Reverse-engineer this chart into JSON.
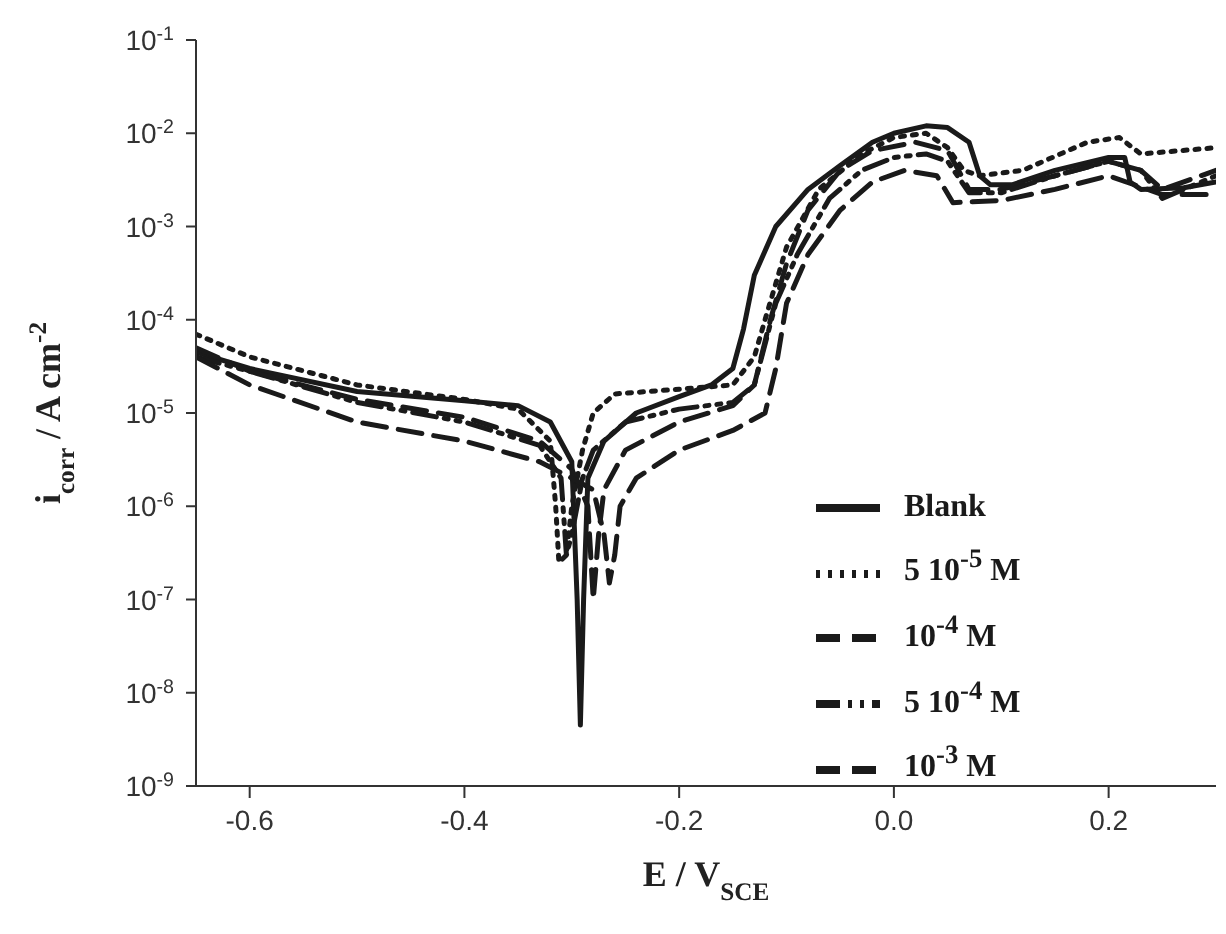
{
  "chart_data": {
    "type": "line",
    "xlabel": "E / V$_{SCE}$",
    "ylabel": "i$_{corr}$ / A cm$^{-2}$",
    "log": "y",
    "grid": false,
    "legend": "bottom right",
    "marker": "none",
    "xlim": [
      -0.65,
      0.3
    ],
    "xticks": [
      -0.6,
      -0.4,
      -0.2,
      {
        "value": 0,
        "label": "0.0"
      },
      0.2
    ],
    "ylim": [
      1e-09,
      0.1
    ],
    "yticks": [
      {
        "value": 1e-09,
        "label": "10$^{-9}$"
      },
      {
        "value": 1e-08,
        "label": "10$^{-8}$"
      },
      {
        "value": 1e-07,
        "label": "10$^{-7}$"
      },
      {
        "value": 1e-06,
        "label": "10$^{-6}$"
      },
      {
        "value": 1e-05,
        "label": "10$^{-5}$"
      },
      {
        "value": 0.0001,
        "label": "10$^{-4}$"
      },
      {
        "value": 0.001,
        "label": "10$^{-3}$"
      },
      {
        "value": 0.01,
        "label": "10$^{-2}$"
      },
      {
        "value": 0.1,
        "label": "10$^{-1}$"
      }
    ],
    "series": [
      {
        "name": "Blank",
        "color": "#1a1a1a",
        "line_style": "solid",
        "x": [
          -0.65,
          -0.6,
          -0.5,
          -0.4,
          -0.35,
          -0.32,
          -0.3,
          -0.295,
          -0.292,
          -0.289,
          -0.285,
          -0.27,
          -0.24,
          -0.2,
          -0.17,
          -0.15,
          -0.14,
          -0.13,
          -0.11,
          -0.08,
          -0.05,
          -0.02,
          0.0,
          0.03,
          0.05,
          0.07,
          0.08,
          0.09,
          0.11,
          0.15,
          0.2,
          0.215,
          0.22,
          0.23,
          0.27,
          0.3
        ],
        "values": [
          4.5e-05,
          3e-05,
          1.7e-05,
          1.35e-05,
          1.2e-05,
          8e-06,
          3e-06,
          1e-07,
          4.5e-09,
          1e-07,
          2e-06,
          5e-06,
          1e-05,
          1.5e-05,
          2e-05,
          3e-05,
          8e-05,
          0.0003,
          0.001,
          0.0025,
          0.0045,
          0.008,
          0.01,
          0.012,
          0.0115,
          0.008,
          0.0035,
          0.0028,
          0.0028,
          0.004,
          0.0055,
          0.0055,
          0.003,
          0.0025,
          0.0026,
          0.003
        ]
      },
      {
        "name": "5  10$^{-5}$ M",
        "color": "#1a1a1a",
        "line_style": "dotted",
        "x": [
          -0.65,
          -0.6,
          -0.5,
          -0.4,
          -0.35,
          -0.32,
          -0.315,
          -0.312,
          -0.305,
          -0.3,
          -0.29,
          -0.28,
          -0.26,
          -0.2,
          -0.15,
          -0.13,
          -0.12,
          -0.1,
          -0.07,
          -0.03,
          0.0,
          0.03,
          0.05,
          0.065,
          0.08,
          0.12,
          0.18,
          0.21,
          0.23,
          0.3
        ],
        "values": [
          7e-05,
          4e-05,
          2e-05,
          1.4e-05,
          1.1e-05,
          5e-06,
          1e-06,
          2.5e-07,
          3e-07,
          1e-06,
          4e-06,
          1e-05,
          1.6e-05,
          1.8e-05,
          2e-05,
          4e-05,
          0.0001,
          0.0006,
          0.0025,
          0.006,
          0.009,
          0.01,
          0.007,
          0.004,
          0.0035,
          0.004,
          0.008,
          0.009,
          0.006,
          0.007
        ]
      },
      {
        "name": "10$^{-4}$ M",
        "color": "#1a1a1a",
        "line_style": "dashed",
        "x": [
          -0.65,
          -0.6,
          -0.5,
          -0.4,
          -0.33,
          -0.3,
          -0.285,
          -0.28,
          -0.275,
          -0.27,
          -0.25,
          -0.2,
          -0.15,
          -0.13,
          -0.115,
          -0.1,
          -0.08,
          -0.05,
          -0.02,
          0.02,
          0.05,
          0.07,
          0.1,
          0.15,
          0.2,
          0.23,
          0.25,
          0.3
        ],
        "values": [
          5e-05,
          2.8e-05,
          1.4e-05,
          9e-06,
          5e-06,
          2.5e-06,
          1e-06,
          1e-07,
          5e-07,
          1.5e-06,
          4e-06,
          8e-06,
          1.2e-05,
          2e-05,
          0.0001,
          0.0004,
          0.0015,
          0.004,
          0.0065,
          0.008,
          0.0065,
          0.0025,
          0.0025,
          0.0035,
          0.005,
          0.004,
          0.0025,
          0.004
        ]
      },
      {
        "name": "5  10$^{-4}$ M",
        "color": "#1a1a1a",
        "line_style": "dashdot",
        "x": [
          -0.65,
          -0.6,
          -0.5,
          -0.4,
          -0.33,
          -0.31,
          -0.305,
          -0.3,
          -0.29,
          -0.28,
          -0.25,
          -0.2,
          -0.15,
          -0.13,
          -0.11,
          -0.09,
          -0.06,
          -0.03,
          0.0,
          0.03,
          0.05,
          0.07,
          0.1,
          0.15,
          0.2,
          0.23,
          0.25,
          0.3
        ],
        "values": [
          4e-05,
          2.8e-05,
          1.3e-05,
          8e-06,
          4.5e-06,
          2e-06,
          3e-07,
          5e-07,
          2e-06,
          4e-06,
          8e-06,
          1.1e-05,
          1.3e-05,
          2e-05,
          0.00015,
          0.0005,
          0.002,
          0.004,
          0.0055,
          0.006,
          0.005,
          0.0023,
          0.0023,
          0.0035,
          0.005,
          0.004,
          0.002,
          0.0035
        ]
      },
      {
        "name": "10$^{-3}$ M",
        "color": "#1a1a1a",
        "line_style": "dashed",
        "x": [
          -0.65,
          -0.6,
          -0.5,
          -0.4,
          -0.33,
          -0.3,
          -0.28,
          -0.27,
          -0.265,
          -0.26,
          -0.255,
          -0.24,
          -0.2,
          -0.15,
          -0.12,
          -0.11,
          -0.1,
          -0.08,
          -0.05,
          -0.02,
          0.01,
          0.04,
          0.055,
          0.1,
          0.15,
          0.2,
          0.25,
          0.3
        ],
        "values": [
          4e-05,
          2e-05,
          8e-06,
          5e-06,
          3e-06,
          2e-06,
          1.5e-06,
          5e-07,
          1.5e-07,
          3e-07,
          1e-06,
          2e-06,
          4e-06,
          6.5e-06,
          1e-05,
          3e-05,
          0.00015,
          0.0005,
          0.0015,
          0.003,
          0.004,
          0.0035,
          0.0018,
          0.0019,
          0.0025,
          0.0035,
          0.0022,
          0.0022
        ]
      }
    ]
  }
}
